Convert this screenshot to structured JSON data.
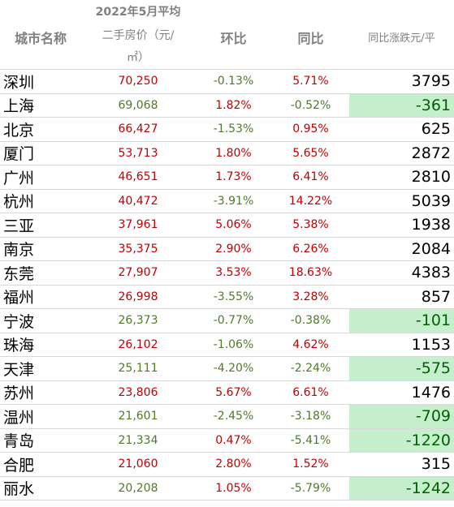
{
  "header": {
    "city": "城市名称",
    "price_line1": "2022年5月平均",
    "price_line2": "二手房价（元/",
    "price_line3": "㎡）",
    "mom": "环比",
    "yoy": "同比",
    "change": "同比涨跌元/平"
  },
  "colors": {
    "positive": "#c00000",
    "negative": "#4f7a28",
    "highlight_bg": "#c6efce",
    "highlight_text": "#006100"
  },
  "rows": [
    {
      "city": "深圳",
      "price": "70,250",
      "mom": "-0.13%",
      "yoy": "5.71%",
      "change": "3795"
    },
    {
      "city": "上海",
      "price": "69,068",
      "mom": "1.82%",
      "yoy": "-0.52%",
      "change": "-361"
    },
    {
      "city": "北京",
      "price": "66,427",
      "mom": "-1.53%",
      "yoy": "0.95%",
      "change": "625"
    },
    {
      "city": "厦门",
      "price": "53,713",
      "mom": "1.80%",
      "yoy": "5.65%",
      "change": "2872"
    },
    {
      "city": "广州",
      "price": "46,651",
      "mom": "1.73%",
      "yoy": "6.41%",
      "change": "2810"
    },
    {
      "city": "杭州",
      "price": "40,472",
      "mom": "-3.91%",
      "yoy": "14.22%",
      "change": "5039"
    },
    {
      "city": "三亚",
      "price": "37,961",
      "mom": "5.06%",
      "yoy": "5.38%",
      "change": "1938"
    },
    {
      "city": "南京",
      "price": "35,375",
      "mom": "2.90%",
      "yoy": "6.26%",
      "change": "2084"
    },
    {
      "city": "东莞",
      "price": "27,907",
      "mom": "3.53%",
      "yoy": "18.63%",
      "change": "4383"
    },
    {
      "city": "福州",
      "price": "26,998",
      "mom": "-3.55%",
      "yoy": "3.28%",
      "change": "857"
    },
    {
      "city": "宁波",
      "price": "26,373",
      "mom": "-0.77%",
      "yoy": "-0.38%",
      "change": "-101"
    },
    {
      "city": "珠海",
      "price": "26,102",
      "mom": "-1.06%",
      "yoy": "4.62%",
      "change": "1153"
    },
    {
      "city": "天津",
      "price": "25,111",
      "mom": "-4.20%",
      "yoy": "-2.24%",
      "change": "-575"
    },
    {
      "city": "苏州",
      "price": "23,806",
      "mom": "5.67%",
      "yoy": "6.61%",
      "change": "1476"
    },
    {
      "city": "温州",
      "price": "21,601",
      "mom": "-2.45%",
      "yoy": "-3.18%",
      "change": "-709"
    },
    {
      "city": "青岛",
      "price": "21,334",
      "mom": "0.47%",
      "yoy": "-5.41%",
      "change": "-1220"
    },
    {
      "city": "合肥",
      "price": "21,060",
      "mom": "2.80%",
      "yoy": "1.52%",
      "change": "315"
    },
    {
      "city": "丽水",
      "price": "20,208",
      "mom": "1.05%",
      "yoy": "-5.79%",
      "change": "-1242"
    }
  ]
}
